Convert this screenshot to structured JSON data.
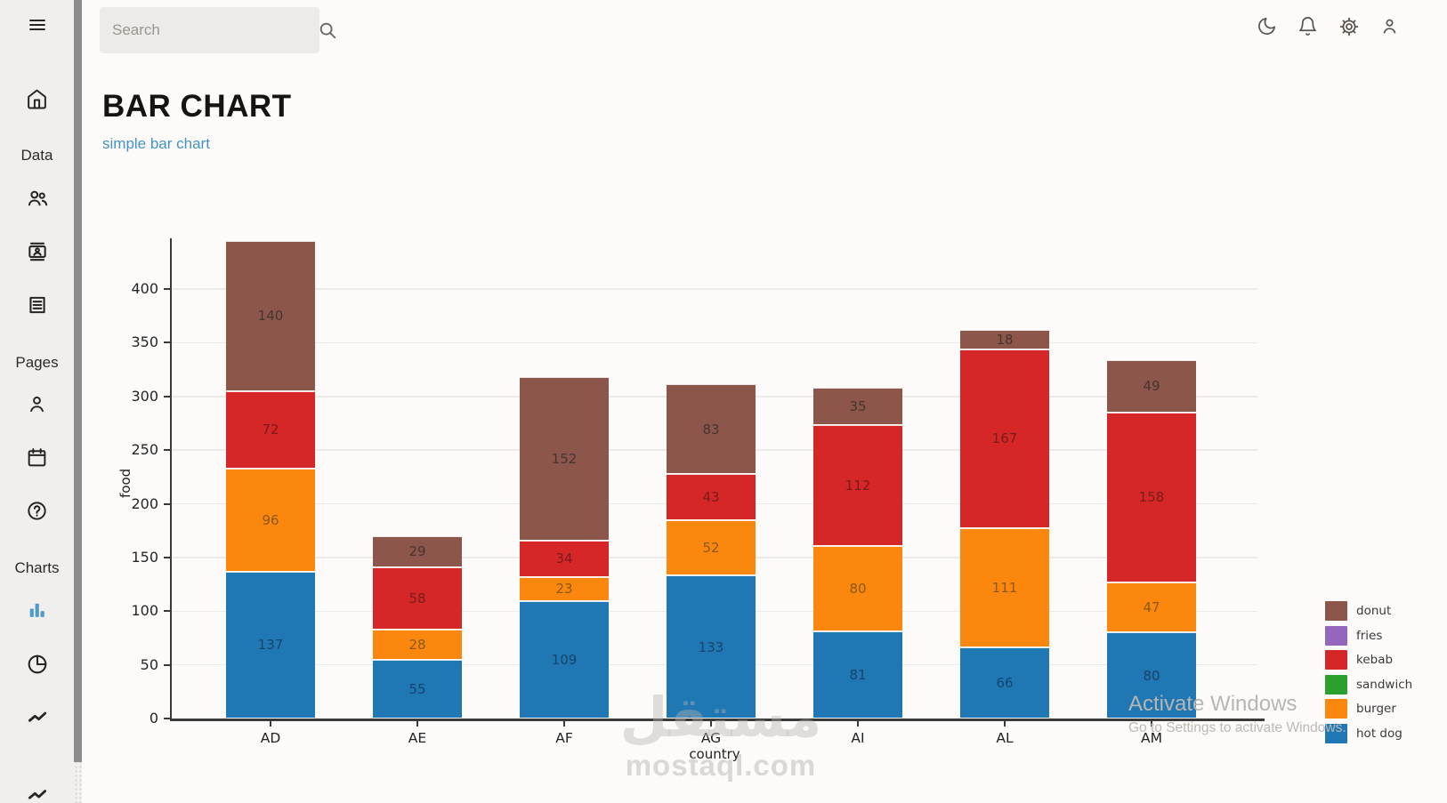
{
  "topbar": {
    "search_placeholder": "Search",
    "icons": [
      "moon-icon",
      "bell-icon",
      "gear-icon",
      "user-icon"
    ]
  },
  "sidebar": {
    "section_labels": {
      "data": "Data",
      "pages": "Pages",
      "charts": "Charts"
    },
    "icons": [
      "menu-icon",
      "home-icon",
      "people-icon",
      "contact-card-icon",
      "receipt-icon",
      "person-icon",
      "calendar-icon",
      "help-icon",
      "bar-chart-icon",
      "pie-chart-icon",
      "line-chart-icon"
    ],
    "active_item": "bar-chart-icon",
    "active_color": "#4f9bc8"
  },
  "page": {
    "title": "BAR CHART",
    "subtitle": "simple bar chart"
  },
  "chart_data": {
    "type": "bar",
    "stacked": true,
    "title": "",
    "xlabel": "country",
    "ylabel": "food",
    "categories": [
      "AD",
      "AE",
      "AF",
      "AG",
      "AI",
      "AL",
      "AM"
    ],
    "series": [
      {
        "name": "hot dog",
        "color": "#1f77b4",
        "label_color": "#17446b",
        "values": [
          137,
          55,
          109,
          133,
          81,
          66,
          80
        ]
      },
      {
        "name": "burger",
        "color": "#fb870f",
        "label_color": "#8a5a10",
        "values": [
          96,
          28,
          23,
          52,
          80,
          111,
          47
        ]
      },
      {
        "name": "kebab",
        "color": "#d62728",
        "label_color": "#771b1c",
        "values": [
          72,
          58,
          34,
          43,
          112,
          167,
          158
        ]
      },
      {
        "name": "donut",
        "color": "#8c564b",
        "label_color": "#463430",
        "values": [
          140,
          29,
          152,
          83,
          35,
          18,
          49
        ]
      }
    ],
    "legend": [
      {
        "name": "donut",
        "color": "#8c564b"
      },
      {
        "name": "fries",
        "color": "#9467bd"
      },
      {
        "name": "kebab",
        "color": "#d62728"
      },
      {
        "name": "sandwich",
        "color": "#2ca02c"
      },
      {
        "name": "burger",
        "color": "#fb870f"
      },
      {
        "name": "hot dog",
        "color": "#1f77b4"
      }
    ],
    "legend_position": "right",
    "yticks": [
      0,
      50,
      100,
      150,
      200,
      250,
      300,
      350,
      400
    ],
    "ylim": [
      0,
      447
    ],
    "grid": true
  },
  "watermark": {
    "logo_text": "مستقل",
    "site": "mostaql.com"
  },
  "activate": {
    "line1": "Activate Windows",
    "line2": "Go to Settings to activate Windows."
  }
}
